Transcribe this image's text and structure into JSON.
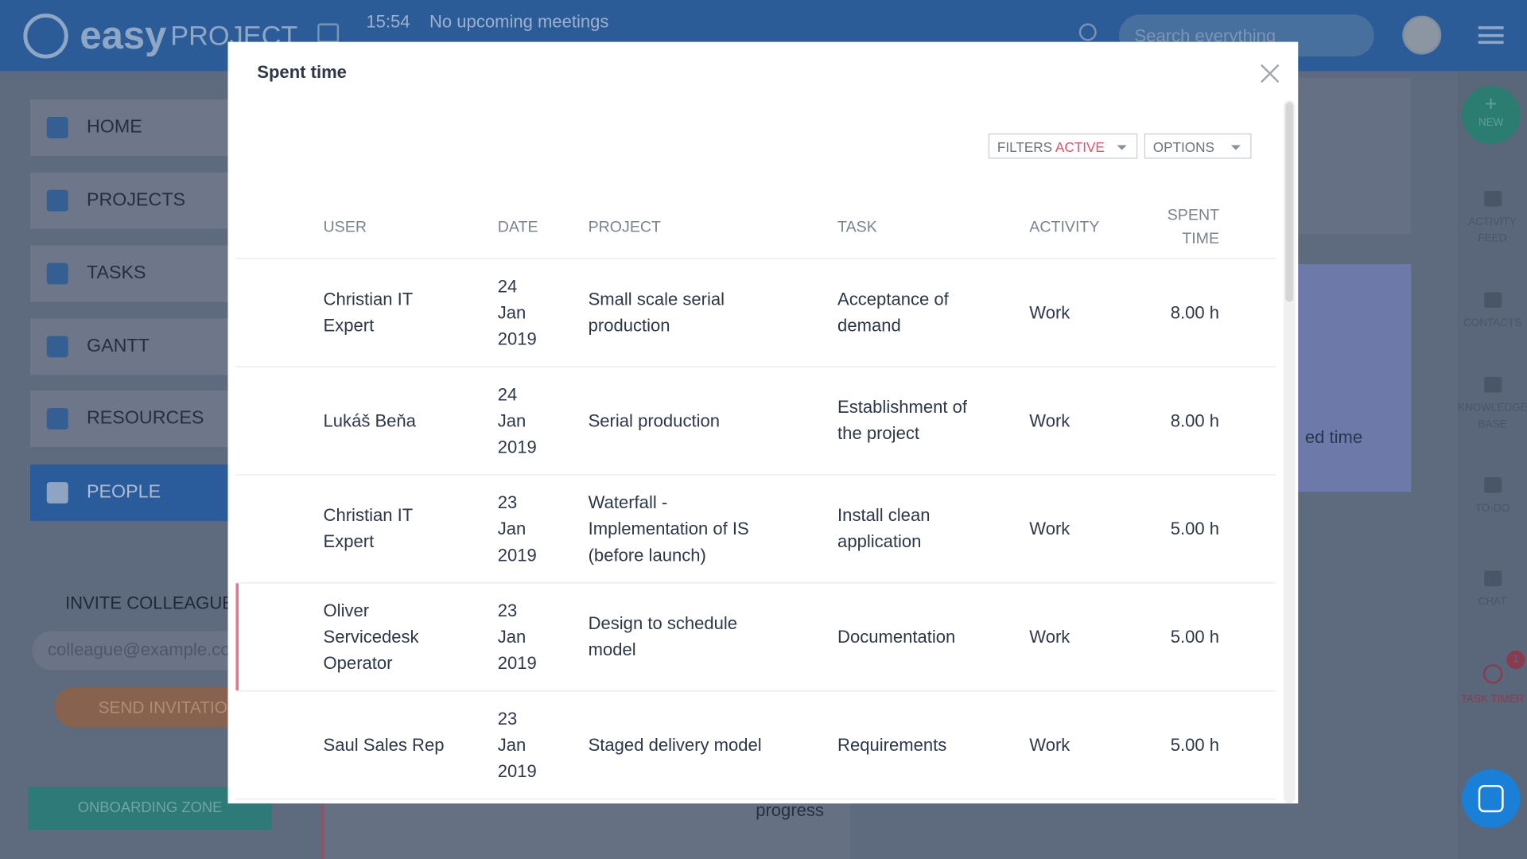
{
  "header": {
    "logo_main": "easy",
    "logo_sub": "PROJECT",
    "time": "15:54",
    "meetings": "No upcoming meetings",
    "search_placeholder": "Search everything"
  },
  "sidebar": {
    "nav": [
      "HOME",
      "PROJECTS",
      "TASKS",
      "GANTT",
      "RESOURCES",
      "PEOPLE"
    ],
    "invite_title": "INVITE COLLEAGUES",
    "invite_placeholder": "colleague@example.com",
    "invite_button": "SEND INVITATION",
    "onboarding": "ONBOARDING ZONE"
  },
  "right_rail": {
    "new": "NEW",
    "items": [
      "ACTIVITY FEED",
      "CONTACTS",
      "KNOWLEDGE BASE",
      "TO-DO",
      "CHAT",
      "TASK TIMER"
    ],
    "badge": "1"
  },
  "background": {
    "fragments": [
      "ed time",
      "progress"
    ]
  },
  "modal": {
    "title": "Spent time",
    "filters_label": "FILTERS",
    "filters_state": "ACTIVE",
    "options": "OPTIONS",
    "columns": [
      "USER",
      "DATE",
      "PROJECT",
      "TASK",
      "ACTIVITY",
      "SPENT TIME"
    ],
    "rows": [
      [
        "Christian IT Expert",
        "24 Jan 2019",
        "Small scale serial production",
        "Acceptance of demand",
        "Work",
        "8.00 h"
      ],
      [
        "Lukáš Beňa",
        "24 Jan 2019",
        "Serial production",
        "Establishment of the project",
        "Work",
        "8.00 h"
      ],
      [
        "Christian IT Expert",
        "23 Jan 2019",
        "Waterfall - Implementation of IS (before launch)",
        "Install clean application",
        "Work",
        "5.00 h"
      ],
      [
        "Oliver Servicedesk Operator",
        "23 Jan 2019",
        "Design to schedule model",
        "Documentation",
        "Work",
        "5.00 h"
      ],
      [
        "Saul Sales Rep",
        "23 Jan 2019",
        "Staged delivery model",
        "Requirements",
        "Work",
        "5.00 h"
      ]
    ]
  }
}
